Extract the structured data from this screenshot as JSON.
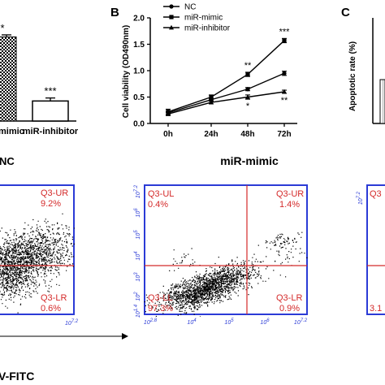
{
  "panel_labels": {
    "b": "B",
    "c": "C"
  },
  "chart_data": [
    {
      "id": "panel-a-bars",
      "type": "bar",
      "categories": [
        "mimic",
        "miR-inhibitor"
      ],
      "values": [
        1.68,
        0.4
      ],
      "annotations": [
        "*",
        "***"
      ],
      "ylim": [
        0,
        1.8
      ],
      "title": "",
      "xlabel": "",
      "ylabel": ""
    },
    {
      "id": "panel-b-line",
      "type": "line",
      "title": "",
      "xlabel": "",
      "ylabel": "Cell viability (OD490nm)",
      "categories": [
        "0h",
        "24h",
        "48h",
        "72h"
      ],
      "ylim": [
        0,
        2.0
      ],
      "yticks": [
        "0.0",
        "0.5",
        "1.0",
        "1.5",
        "2.0"
      ],
      "series": [
        {
          "name": "NC",
          "marker": "circle",
          "values": [
            0.2,
            0.45,
            0.65,
            0.95
          ],
          "errors": [
            0.03,
            0.03,
            0.03,
            0.04
          ],
          "annotation": ""
        },
        {
          "name": "miR-mimic",
          "marker": "square",
          "values": [
            0.22,
            0.5,
            0.93,
            1.57
          ],
          "errors": [
            0.05,
            0.04,
            0.04,
            0.04
          ],
          "annotation_points": [
            {
              "index": 2,
              "text": "**"
            },
            {
              "index": 3,
              "text": "***"
            }
          ]
        },
        {
          "name": "miR-inhibitor",
          "marker": "triangle",
          "values": [
            0.18,
            0.4,
            0.5,
            0.6
          ],
          "errors": [
            0.03,
            0.03,
            0.04,
            0.03
          ],
          "annotation_points": [
            {
              "index": 2,
              "text": "*"
            },
            {
              "index": 3,
              "text": "**"
            }
          ]
        }
      ],
      "legend": "top-left"
    },
    {
      "id": "panel-c-bar",
      "type": "bar",
      "ylabel": "Apoptotic rate (%)",
      "title": "",
      "xlabel": ""
    }
  ],
  "flow": {
    "group_labels": [
      "NC",
      "miR-mimic"
    ],
    "xlabel_partial": "V-FITC",
    "plot_nc": {
      "ur_label": "Q3-UR",
      "ur_value": "9.2%",
      "lr_label": "Q3-LR",
      "lr_value": "0.6%"
    },
    "plot_mimic": {
      "ul_label": "Q3-UL",
      "ul_value": "0.4%",
      "ur_label": "Q3-UR",
      "ur_value": "1.4%",
      "ll_label": "Q3-LL",
      "ll_value": "97.3%",
      "lr_label": "Q3-LR",
      "lr_value": "0.9%",
      "yticks": [
        "10^7.2",
        "10^6",
        "10^5",
        "10^4",
        "10^3",
        "10^2",
        "10^1.4"
      ],
      "xticks": [
        "10^2.8",
        "10^4",
        "10^5",
        "10^6",
        "10^7.2"
      ]
    },
    "plot_partial_right": {
      "ul_label_partial": "Q3",
      "ll_value_partial": "3.1",
      "ytick_top": "10^7.2"
    }
  }
}
